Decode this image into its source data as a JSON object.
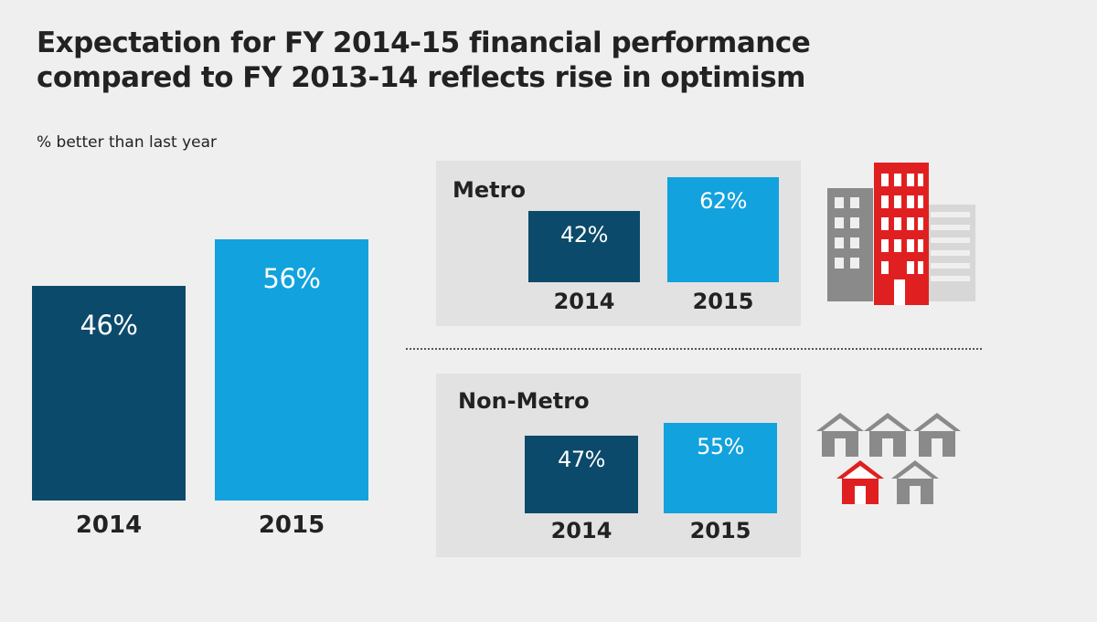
{
  "title": "Expectation for FY 2014-15 financial performance compared to FY 2013-14 reflects rise in optimism",
  "subtitle": "% better than last year",
  "colors": {
    "y2014": "#0b4a6a",
    "y2015": "#12a2de",
    "panel": "#e2e2e2",
    "accent_red": "#e02020",
    "grey": "#8a8a8a"
  },
  "icons": {
    "metro": "city-buildings-icon",
    "non_metro": "houses-icon"
  },
  "chart_data": [
    {
      "type": "bar",
      "title": "",
      "categories": [
        "2014",
        "2015"
      ],
      "values": [
        46,
        56
      ],
      "value_labels": [
        "46%",
        "56%"
      ],
      "ylabel": "% better than last year"
    },
    {
      "type": "bar",
      "title": "Metro",
      "categories": [
        "2014",
        "2015"
      ],
      "values": [
        42,
        62
      ],
      "value_labels": [
        "42%",
        "62%"
      ]
    },
    {
      "type": "bar",
      "title": "Non-Metro",
      "categories": [
        "2014",
        "2015"
      ],
      "values": [
        47,
        55
      ],
      "value_labels": [
        "47%",
        "55%"
      ]
    }
  ]
}
